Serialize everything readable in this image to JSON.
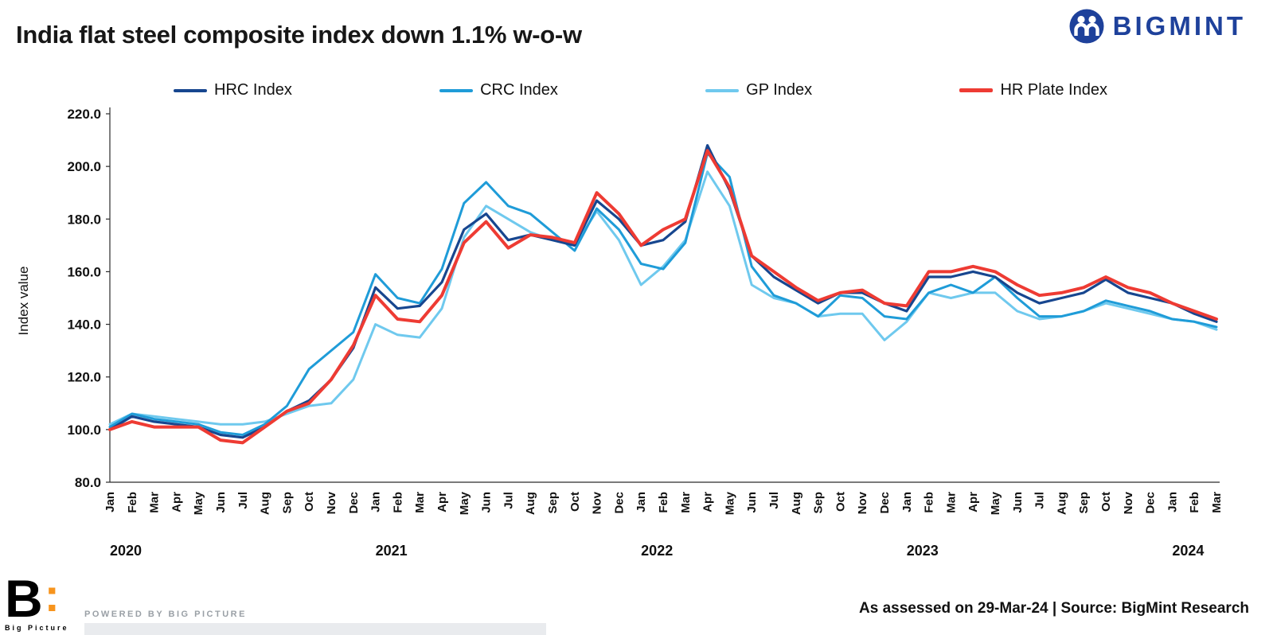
{
  "header": {
    "title": "India flat steel composite index down 1.1% w-o-w",
    "brand": "BIGMINT"
  },
  "footer": {
    "assessed": "As assessed on 29-Mar-24  |  Source: BigMint Research",
    "powered_by": "POWERED BY BIG PICTURE",
    "logo_b": "B",
    "logo_colon": ":",
    "logo_text": "Big Picture"
  },
  "chart_data": {
    "type": "line",
    "title": "India flat steel composite index down 1.1% w-o-w",
    "xlabel": "",
    "ylabel": "Index value",
    "ylim": [
      80,
      220
    ],
    "yticks": [
      80,
      100,
      120,
      140,
      160,
      180,
      200,
      220
    ],
    "ytick_labels": [
      "80.0",
      "100.0",
      "120.0",
      "140.0",
      "160.0",
      "180.0",
      "200.0",
      "220.0"
    ],
    "grid": false,
    "legend_position": "top",
    "x_labels": [
      "Jan",
      "Feb",
      "Mar",
      "Apr",
      "May",
      "Jun",
      "Jul",
      "Aug",
      "Sep",
      "Oct",
      "Nov",
      "Dec",
      "Jan",
      "Feb",
      "Mar",
      "Apr",
      "May",
      "Jun",
      "Jul",
      "Aug",
      "Sep",
      "Oct",
      "Nov",
      "Dec",
      "Jan",
      "Feb",
      "Mar",
      "Apr",
      "May",
      "Jun",
      "Jul",
      "Aug",
      "Sep",
      "Oct",
      "Nov",
      "Dec",
      "Jan",
      "Feb",
      "Mar",
      "Apr",
      "May",
      "Jun",
      "Jul",
      "Aug",
      "Sep",
      "Oct",
      "Nov",
      "Dec",
      "Jan",
      "Feb",
      "Mar"
    ],
    "years": [
      {
        "label": "2020",
        "index": 0
      },
      {
        "label": "2021",
        "index": 12
      },
      {
        "label": "2022",
        "index": 24
      },
      {
        "label": "2023",
        "index": 36
      },
      {
        "label": "2024",
        "index": 48
      }
    ],
    "series": [
      {
        "name": "HRC Index",
        "color": "#17468F",
        "values": [
          100,
          105,
          103,
          102,
          101,
          98,
          97,
          101,
          107,
          111,
          119,
          131,
          154,
          146,
          147,
          156,
          176,
          182,
          172,
          174,
          172,
          170,
          187,
          180,
          170,
          172,
          179,
          208,
          191,
          166,
          158,
          153,
          148,
          152,
          152,
          148,
          145,
          158,
          158,
          160,
          158,
          152,
          148,
          150,
          152,
          157,
          152,
          150,
          148,
          144,
          141
        ]
      },
      {
        "name": "CRC Index",
        "color": "#1F9CD8",
        "values": [
          101,
          106,
          104,
          103,
          102,
          99,
          98,
          102,
          109,
          123,
          130,
          137,
          159,
          150,
          148,
          161,
          186,
          194,
          185,
          182,
          175,
          168,
          184,
          176,
          163,
          161,
          171,
          205,
          196,
          162,
          151,
          148,
          143,
          151,
          150,
          143,
          142,
          152,
          155,
          152,
          158,
          150,
          143,
          143,
          145,
          149,
          147,
          145,
          142,
          141,
          139
        ]
      },
      {
        "name": "GP Index",
        "color": "#6FC9EE",
        "values": [
          102,
          106,
          105,
          104,
          103,
          102,
          102,
          103,
          106,
          109,
          110,
          119,
          140,
          136,
          135,
          146,
          173,
          185,
          180,
          175,
          172,
          170,
          183,
          172,
          155,
          162,
          172,
          198,
          185,
          155,
          150,
          148,
          143,
          144,
          144,
          134,
          141,
          152,
          150,
          152,
          152,
          145,
          142,
          143,
          145,
          148,
          146,
          144,
          142,
          141,
          138
        ]
      },
      {
        "name": "HR Plate Index",
        "color": "#EE3B33",
        "values": [
          100,
          103,
          101,
          101,
          101,
          96,
          95,
          101,
          107,
          110,
          119,
          132,
          151,
          142,
          141,
          151,
          171,
          179,
          169,
          174,
          173,
          171,
          190,
          182,
          170,
          176,
          180,
          206,
          192,
          166,
          160,
          154,
          149,
          152,
          153,
          148,
          147,
          160,
          160,
          162,
          160,
          155,
          151,
          152,
          154,
          158,
          154,
          152,
          148,
          145,
          142
        ]
      }
    ]
  }
}
